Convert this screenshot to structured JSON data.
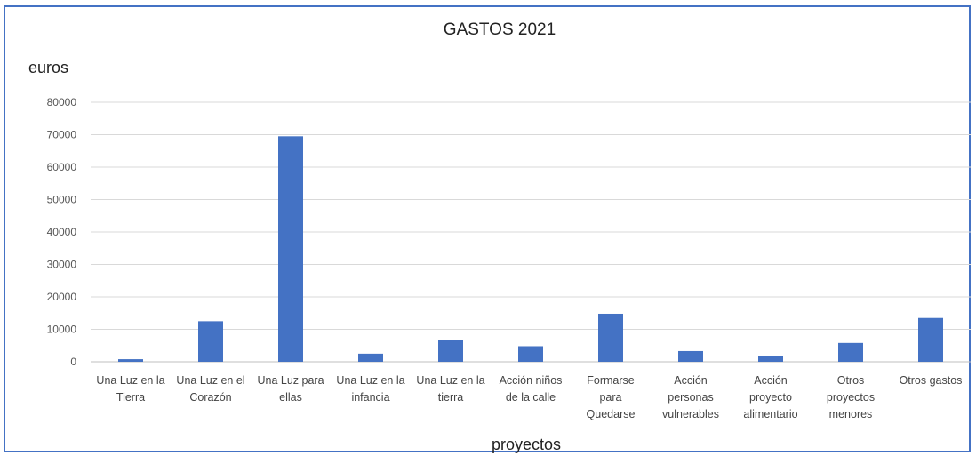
{
  "chart_data": {
    "type": "bar",
    "title": "GASTOS 2021",
    "ylabel": "euros",
    "xlabel": "proyectos",
    "ylim": [
      0,
      80000
    ],
    "yticks": [
      0,
      10000,
      20000,
      30000,
      40000,
      50000,
      60000,
      70000,
      80000
    ],
    "grid": true,
    "bar_color": "#4472c4",
    "categories": [
      [
        "Una Luz en la",
        "Tierra"
      ],
      [
        "Una Luz en el",
        "Corazón"
      ],
      [
        "Una Luz para",
        "ellas"
      ],
      [
        "Una Luz en la",
        "infancia"
      ],
      [
        "Una Luz en la",
        "tierra"
      ],
      [
        "Acción niños",
        "de la calle"
      ],
      [
        "Formarse",
        "para",
        "Quedarse"
      ],
      [
        "Acción",
        "personas",
        "vulnerables"
      ],
      [
        "Acción",
        "proyecto",
        "alimentario"
      ],
      [
        "Otros",
        "proyectos",
        "menores"
      ],
      [
        "Otros gastos"
      ]
    ],
    "values": [
      800,
      12500,
      69500,
      2500,
      6800,
      4800,
      14800,
      3300,
      1800,
      5800,
      13500
    ]
  }
}
